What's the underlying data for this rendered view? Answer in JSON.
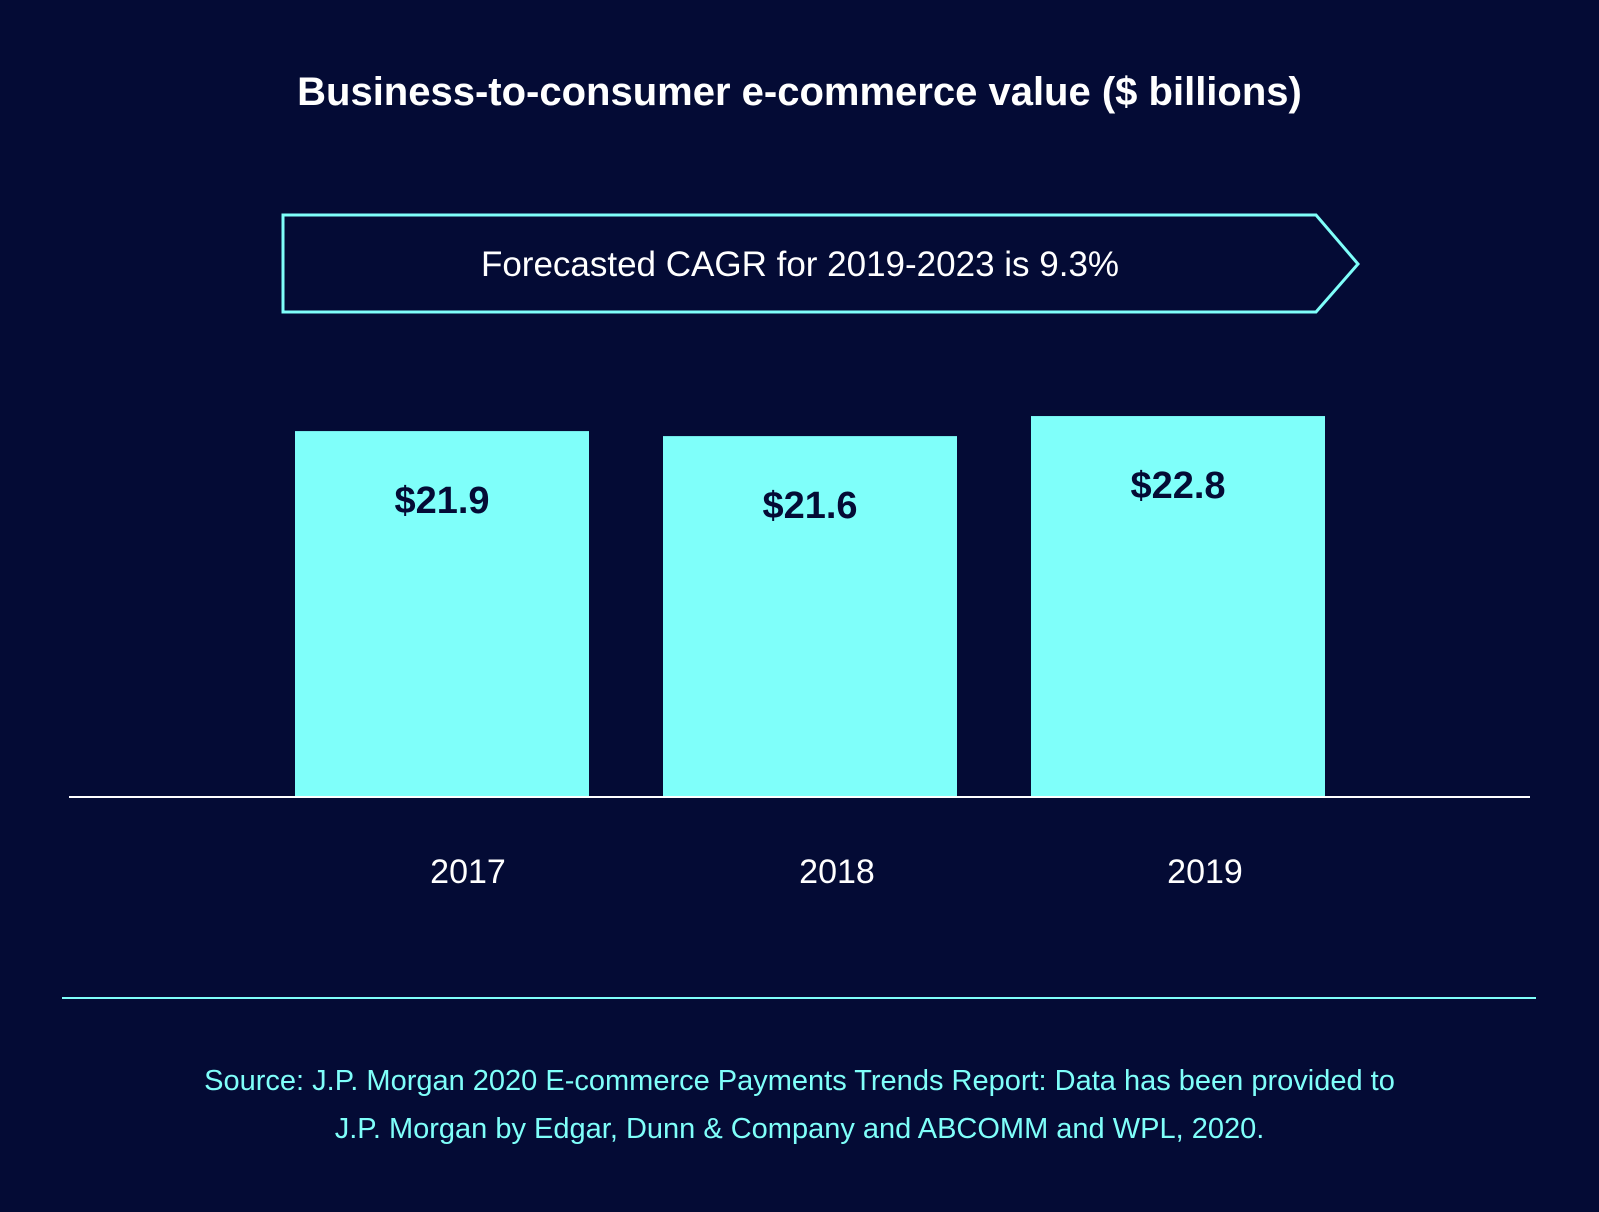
{
  "chart_data": {
    "type": "bar",
    "title": "Business-to-consumer e-commerce value ($ billions)",
    "annotation": "Forecasted CAGR for 2019-2023 is 9.3%",
    "categories": [
      "2017",
      "2018",
      "2019"
    ],
    "values": [
      21.9,
      21.6,
      22.8
    ],
    "data_labels": [
      "$21.9",
      "$21.6",
      "$22.8"
    ],
    "xlabel": "",
    "ylabel": "",
    "ylim": [
      0,
      24
    ],
    "grid": false,
    "bar_color": "#7ffffa",
    "background_color": "#040b35"
  },
  "source": {
    "line1": "Source: J.P. Morgan 2020 E-commerce Payments Trends Report: Data has been provided to",
    "line2": "J.P. Morgan by Edgar, Dunn & Company and ABCOMM and WPL, 2020."
  }
}
